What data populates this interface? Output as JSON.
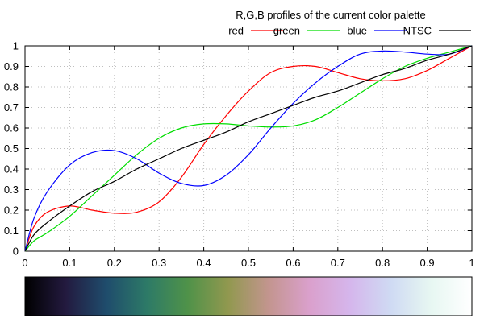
{
  "chart_data": {
    "type": "line",
    "title": "R,G,B profiles of the current color palette",
    "xlabel": "",
    "ylabel": "",
    "xlim": [
      0,
      1
    ],
    "ylim": [
      0,
      1
    ],
    "xticks": [
      "0",
      "0.1",
      "0.2",
      "0.3",
      "0.4",
      "0.5",
      "0.6",
      "0.7",
      "0.8",
      "0.9",
      "1"
    ],
    "yticks": [
      "0",
      "0.1",
      "0.2",
      "0.3",
      "0.4",
      "0.5",
      "0.6",
      "0.7",
      "0.8",
      "0.9",
      "1"
    ],
    "grid": true,
    "legend_position": "top-right",
    "x": [
      0,
      0.02,
      0.05,
      0.1,
      0.15,
      0.2,
      0.25,
      0.3,
      0.35,
      0.4,
      0.45,
      0.5,
      0.55,
      0.6,
      0.65,
      0.7,
      0.75,
      0.8,
      0.85,
      0.9,
      0.95,
      1.0
    ],
    "series": [
      {
        "name": "red",
        "color": "#ff0000",
        "values": [
          0,
          0.12,
          0.19,
          0.22,
          0.2,
          0.185,
          0.19,
          0.24,
          0.36,
          0.52,
          0.66,
          0.78,
          0.87,
          0.9,
          0.9,
          0.87,
          0.84,
          0.83,
          0.84,
          0.88,
          0.94,
          1.0
        ]
      },
      {
        "name": "green",
        "color": "#00dd00",
        "values": [
          0,
          0.05,
          0.09,
          0.17,
          0.27,
          0.37,
          0.47,
          0.55,
          0.6,
          0.62,
          0.62,
          0.61,
          0.605,
          0.61,
          0.64,
          0.7,
          0.77,
          0.84,
          0.9,
          0.94,
          0.97,
          1.0
        ]
      },
      {
        "name": "blue",
        "color": "#0000ff",
        "values": [
          0,
          0.16,
          0.29,
          0.42,
          0.48,
          0.49,
          0.45,
          0.38,
          0.33,
          0.32,
          0.37,
          0.47,
          0.6,
          0.72,
          0.82,
          0.9,
          0.96,
          0.975,
          0.97,
          0.96,
          0.96,
          1.0
        ]
      },
      {
        "name": "NTSC",
        "color": "#000000",
        "values": [
          0,
          0.08,
          0.14,
          0.22,
          0.29,
          0.34,
          0.4,
          0.45,
          0.5,
          0.54,
          0.58,
          0.63,
          0.67,
          0.71,
          0.75,
          0.78,
          0.82,
          0.86,
          0.89,
          0.93,
          0.96,
          1.0
        ]
      }
    ],
    "colorbar": {
      "stops": [
        "#000000",
        "#231a3f",
        "#1f4c6c",
        "#2d7a67",
        "#4f9249",
        "#91984f",
        "#c3958f",
        "#daa0cc",
        "#d5b6ec",
        "#cfdaf3",
        "#e7f7f2",
        "#ffffff"
      ]
    }
  }
}
